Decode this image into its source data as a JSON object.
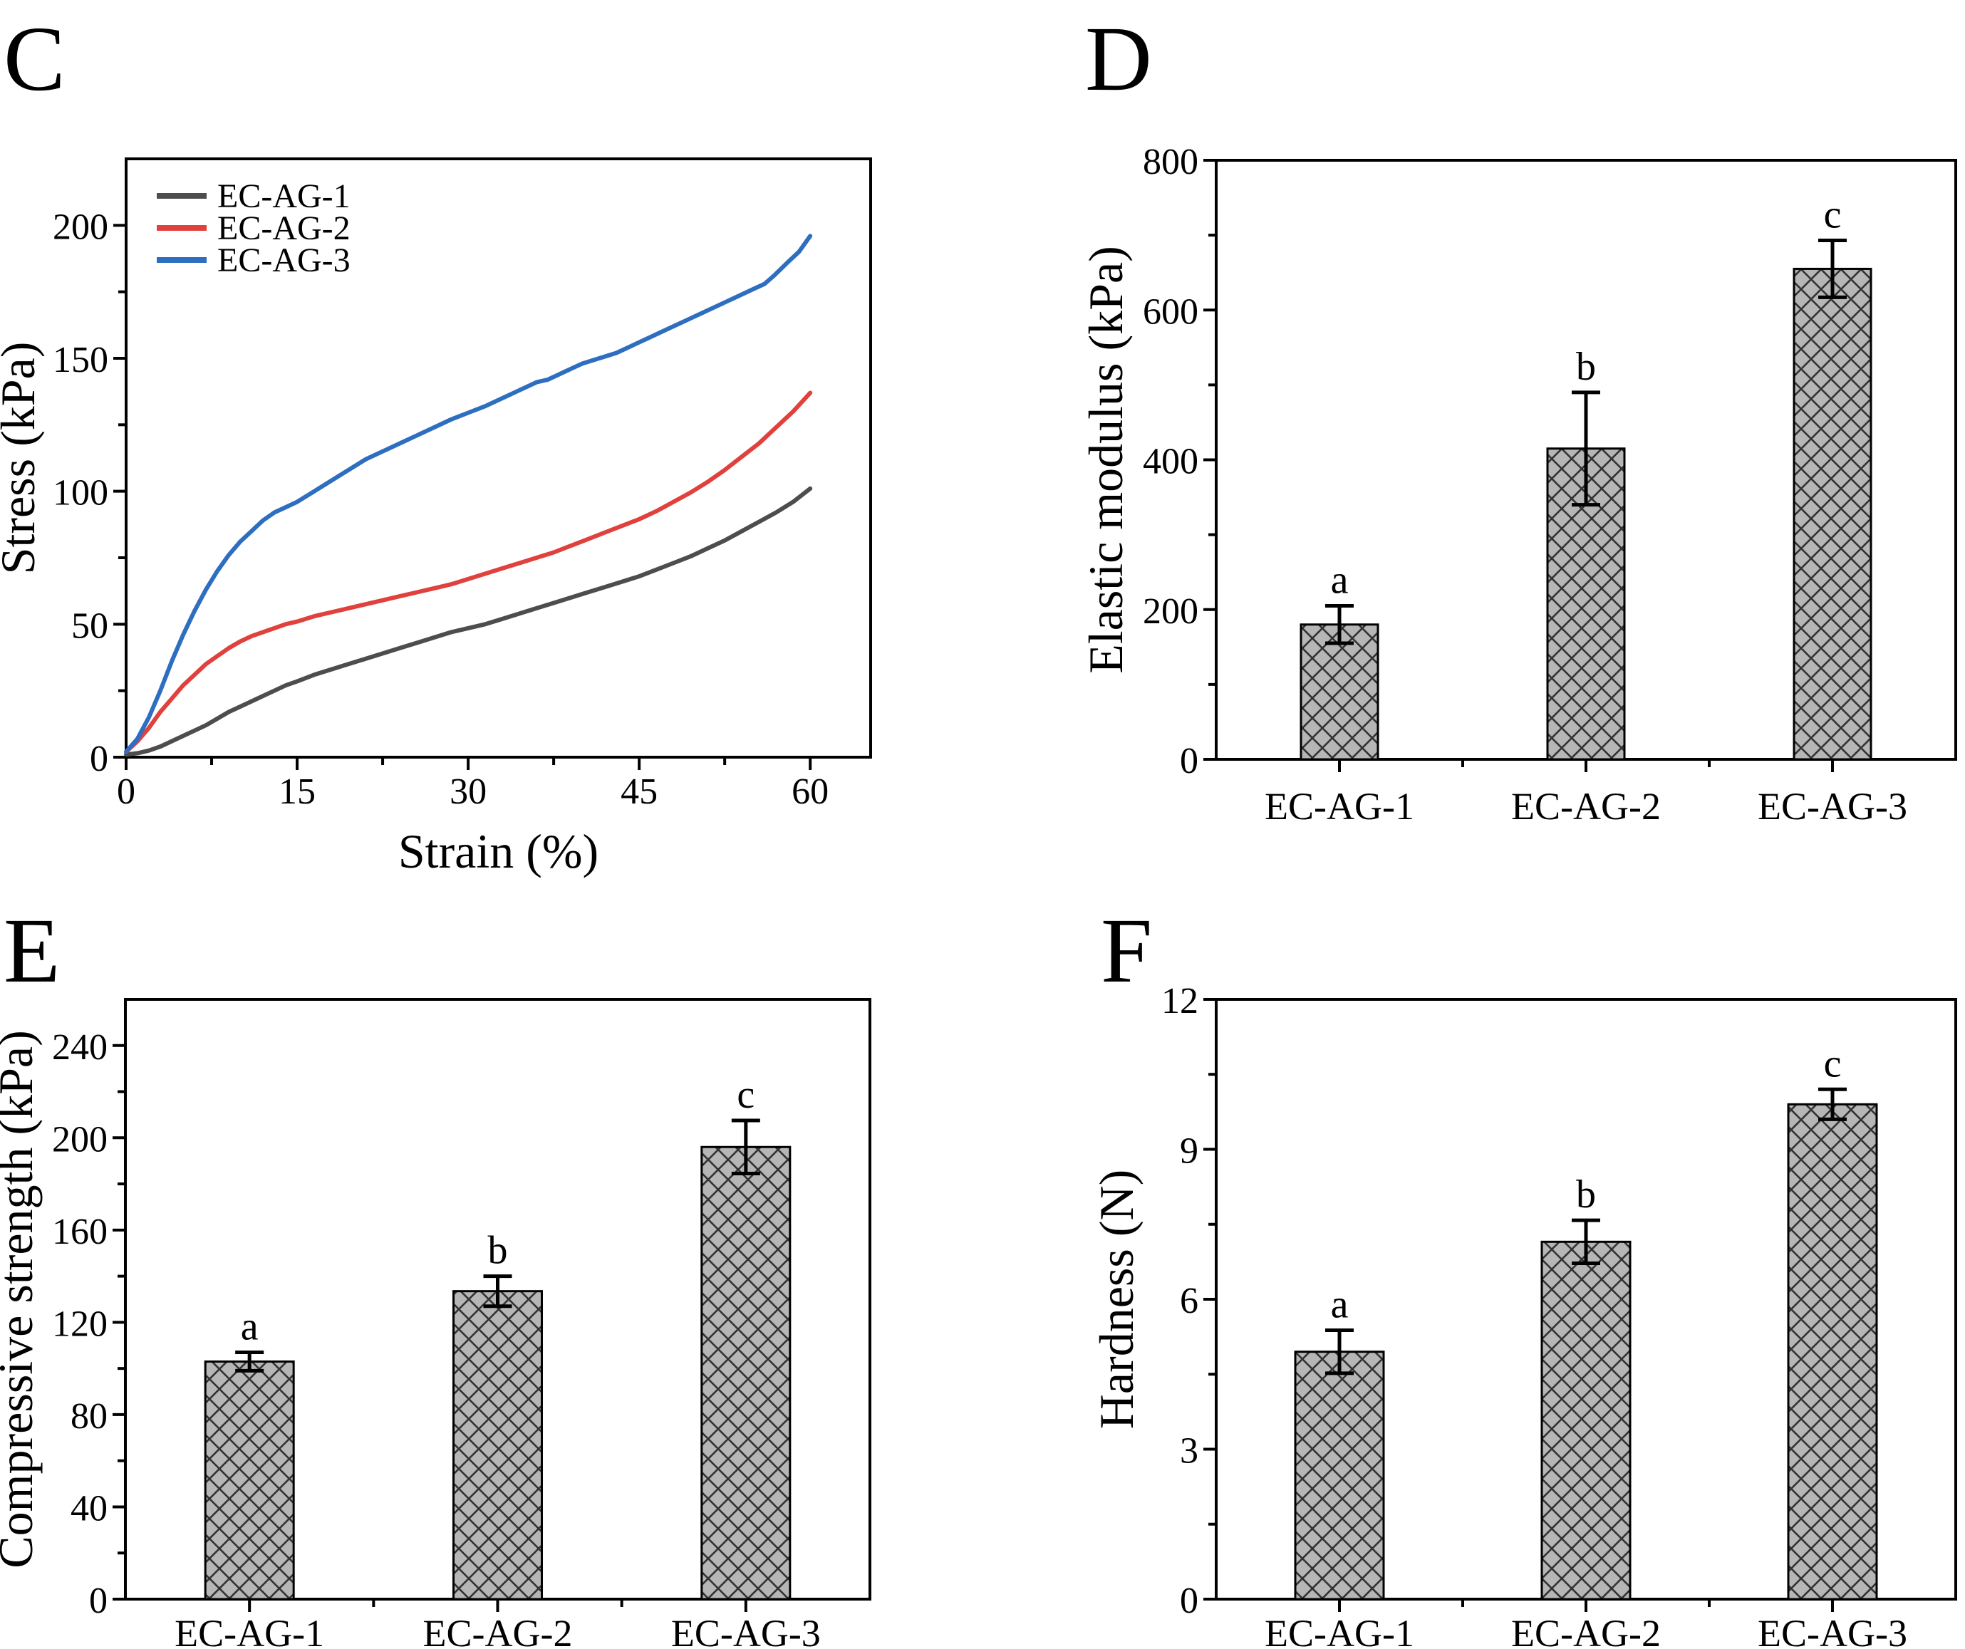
{
  "figure_title": "",
  "axis_color": "#000000",
  "chart_data": [
    {
      "panel_label": "C",
      "type": "line",
      "xlabel": "Strain (%)",
      "ylabel": "Stress (kPa)",
      "xlim": [
        0,
        65.3
      ],
      "ylim": [
        0,
        225
      ],
      "x_major_ticks": [
        0,
        15,
        30,
        45,
        60
      ],
      "x_minor_ticks": [
        7.5,
        22.5,
        37.5,
        52.5
      ],
      "y_major_ticks": [
        0,
        50,
        100,
        150,
        200
      ],
      "y_minor_ticks": [
        25,
        75,
        125,
        175
      ],
      "grid": false,
      "legend_position": "top-left",
      "series": [
        {
          "name": "EC-AG-1",
          "color": "#4d4d4d",
          "x": [
            0,
            1,
            2,
            3,
            4,
            5,
            6,
            7,
            8,
            9,
            10,
            11,
            12,
            13,
            14,
            15,
            16.5,
            18,
            19.5,
            21,
            22.5,
            24,
            25.5,
            27,
            28.5,
            30,
            31.5,
            33,
            34.5,
            36,
            37.5,
            39,
            40.5,
            42,
            43.5,
            45,
            46.5,
            48,
            49.5,
            51,
            52.5,
            54,
            55.5,
            57,
            58.5,
            60
          ],
          "y": [
            1,
            1.5,
            2.5,
            4,
            6,
            8,
            10,
            12,
            14.5,
            17,
            19,
            21,
            23,
            25,
            27,
            28.5,
            31,
            33,
            35,
            37,
            39,
            41,
            43,
            45,
            47,
            48.5,
            50,
            52,
            54,
            56,
            58,
            60,
            62,
            64,
            66,
            68,
            70.5,
            73,
            75.5,
            78.5,
            81.5,
            85,
            88.5,
            92,
            96,
            101
          ]
        },
        {
          "name": "EC-AG-2",
          "color": "#e0413d",
          "x": [
            0,
            1,
            2,
            3,
            4,
            5,
            6,
            7,
            8,
            9,
            10,
            11,
            12,
            13,
            14,
            15,
            16.5,
            18,
            19.5,
            21,
            22.5,
            24,
            25.5,
            27,
            28.5,
            30,
            31.5,
            33,
            34.5,
            36,
            37.5,
            39,
            40.5,
            42,
            43.5,
            45,
            46.5,
            48,
            49.5,
            51,
            52.5,
            54,
            55.5,
            57,
            58.5,
            60
          ],
          "y": [
            2,
            6,
            11,
            17,
            22,
            27,
            31,
            35,
            38,
            41,
            43.5,
            45.5,
            47,
            48.5,
            50,
            51,
            53,
            54.5,
            56,
            57.5,
            59,
            60.5,
            62,
            63.5,
            65,
            67,
            69,
            71,
            73,
            75,
            77,
            79.5,
            82,
            84.5,
            87,
            89.5,
            92.5,
            96,
            99.5,
            103.5,
            108,
            113,
            118,
            124,
            130,
            137
          ]
        },
        {
          "name": "EC-AG-3",
          "color": "#2e6ec0",
          "x": [
            0,
            1,
            2,
            3,
            4,
            5,
            6,
            7,
            8,
            9,
            10,
            11,
            12,
            13,
            14,
            15,
            16.5,
            18,
            19.5,
            21,
            22.5,
            24,
            25.5,
            27,
            28.5,
            30,
            31.5,
            33,
            34.5,
            36,
            37,
            38,
            39,
            40,
            41.5,
            43,
            44.5,
            46,
            47.5,
            49,
            50.5,
            52,
            53.5,
            55,
            56,
            56.8,
            58,
            59,
            60
          ],
          "y": [
            2,
            7,
            15,
            25,
            36,
            46,
            55,
            63,
            70,
            76,
            81,
            85,
            89,
            92,
            94,
            96,
            100,
            104,
            108,
            112,
            115,
            118,
            121,
            124,
            127,
            129.5,
            132,
            135,
            138,
            141,
            142,
            144,
            146,
            148,
            150,
            152,
            155,
            158,
            161,
            164,
            167,
            170,
            173,
            176,
            178,
            181,
            186,
            190,
            196
          ]
        }
      ]
    },
    {
      "panel_label": "D",
      "type": "bar",
      "ylabel": "Elastic modulus (kPa)",
      "categories": [
        "EC-AG-1",
        "EC-AG-2",
        "EC-AG-3"
      ],
      "values": [
        180,
        415,
        655
      ],
      "errors": [
        25,
        75,
        38
      ],
      "significance_letters": [
        "a",
        "b",
        "c"
      ],
      "ylim": [
        0,
        800
      ],
      "y_major_ticks": [
        0,
        200,
        400,
        600,
        800
      ],
      "y_minor_ticks": [
        100,
        300,
        500,
        700
      ],
      "bar_fill": "#b6b6b6",
      "hatch_color": "#333333",
      "hatch_style": "diagonal-crosshatch",
      "grid": false
    },
    {
      "panel_label": "E",
      "type": "bar",
      "ylabel": "Compressive strength (kPa)",
      "categories": [
        "EC-AG-1",
        "EC-AG-2",
        "EC-AG-3"
      ],
      "values": [
        103,
        133.5,
        196
      ],
      "errors": [
        4,
        6.5,
        11.5
      ],
      "significance_letters": [
        "a",
        "b",
        "c"
      ],
      "ylim": [
        0,
        260
      ],
      "y_major_ticks": [
        0,
        40,
        80,
        120,
        160,
        200,
        240
      ],
      "y_minor_ticks": [
        20,
        60,
        100,
        140,
        180,
        220
      ],
      "bar_fill": "#b6b6b6",
      "hatch_color": "#333333",
      "hatch_style": "diagonal-crosshatch",
      "grid": false
    },
    {
      "panel_label": "F",
      "type": "bar",
      "ylabel": "Hardness (N)",
      "categories": [
        "EC-AG-1",
        "EC-AG-2",
        "EC-AG-3"
      ],
      "values": [
        4.95,
        7.15,
        9.9
      ],
      "errors": [
        0.43,
        0.43,
        0.3
      ],
      "significance_letters": [
        "a",
        "b",
        "c"
      ],
      "ylim": [
        0,
        12
      ],
      "y_major_ticks": [
        0,
        3,
        6,
        9,
        12
      ],
      "y_minor_ticks": [
        1.5,
        4.5,
        7.5,
        10.5
      ],
      "bar_fill": "#b6b6b6",
      "hatch_color": "#333333",
      "hatch_style": "diagonal-crosshatch",
      "grid": false
    }
  ]
}
